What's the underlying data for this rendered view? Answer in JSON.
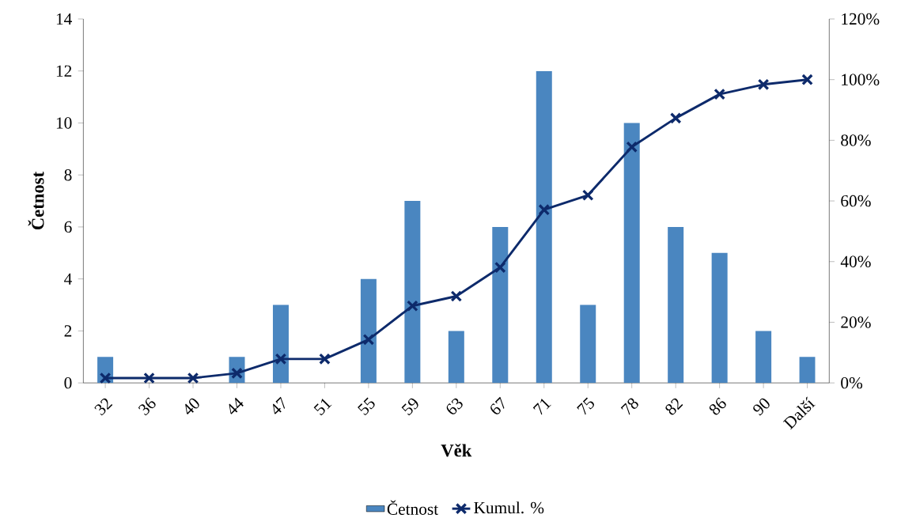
{
  "chart_data": {
    "type": "bar",
    "xlabel": "Věk",
    "ylabel": "Četnost",
    "categories": [
      "32",
      "36",
      "40",
      "44",
      "47",
      "51",
      "55",
      "59",
      "63",
      "67",
      "71",
      "75",
      "78",
      "82",
      "86",
      "90",
      "Další"
    ],
    "series": [
      {
        "name": "Četnost",
        "color": "#4a86c0",
        "values": [
          1,
          0,
          0,
          1,
          3,
          0,
          4,
          7,
          2,
          6,
          12,
          3,
          10,
          6,
          5,
          2,
          1
        ]
      },
      {
        "name": "Kumul. %",
        "type": "line",
        "axis": "y2",
        "color": "#0d2a6b",
        "marker": "cross",
        "line_style": "solid",
        "values": [
          1.6,
          1.6,
          1.6,
          3.2,
          7.9,
          7.9,
          14.3,
          25.4,
          28.6,
          38.1,
          57.1,
          61.9,
          77.8,
          87.3,
          95.2,
          98.4,
          100
        ]
      }
    ],
    "ylim": [
      0,
      14
    ],
    "yticks": [
      0,
      2,
      4,
      6,
      8,
      10,
      12,
      14
    ],
    "y2lim": [
      0,
      120
    ],
    "y2ticks": [
      {
        "value": 0,
        "label": "0%"
      },
      {
        "value": 20,
        "label": "20%"
      },
      {
        "value": 40,
        "label": "40%"
      },
      {
        "value": 60,
        "label": "60%"
      },
      {
        "value": 80,
        "label": "80%"
      },
      {
        "value": 100,
        "label": "100%"
      },
      {
        "value": 120,
        "label": "120%"
      }
    ],
    "grid": false,
    "legend": "bottom"
  }
}
